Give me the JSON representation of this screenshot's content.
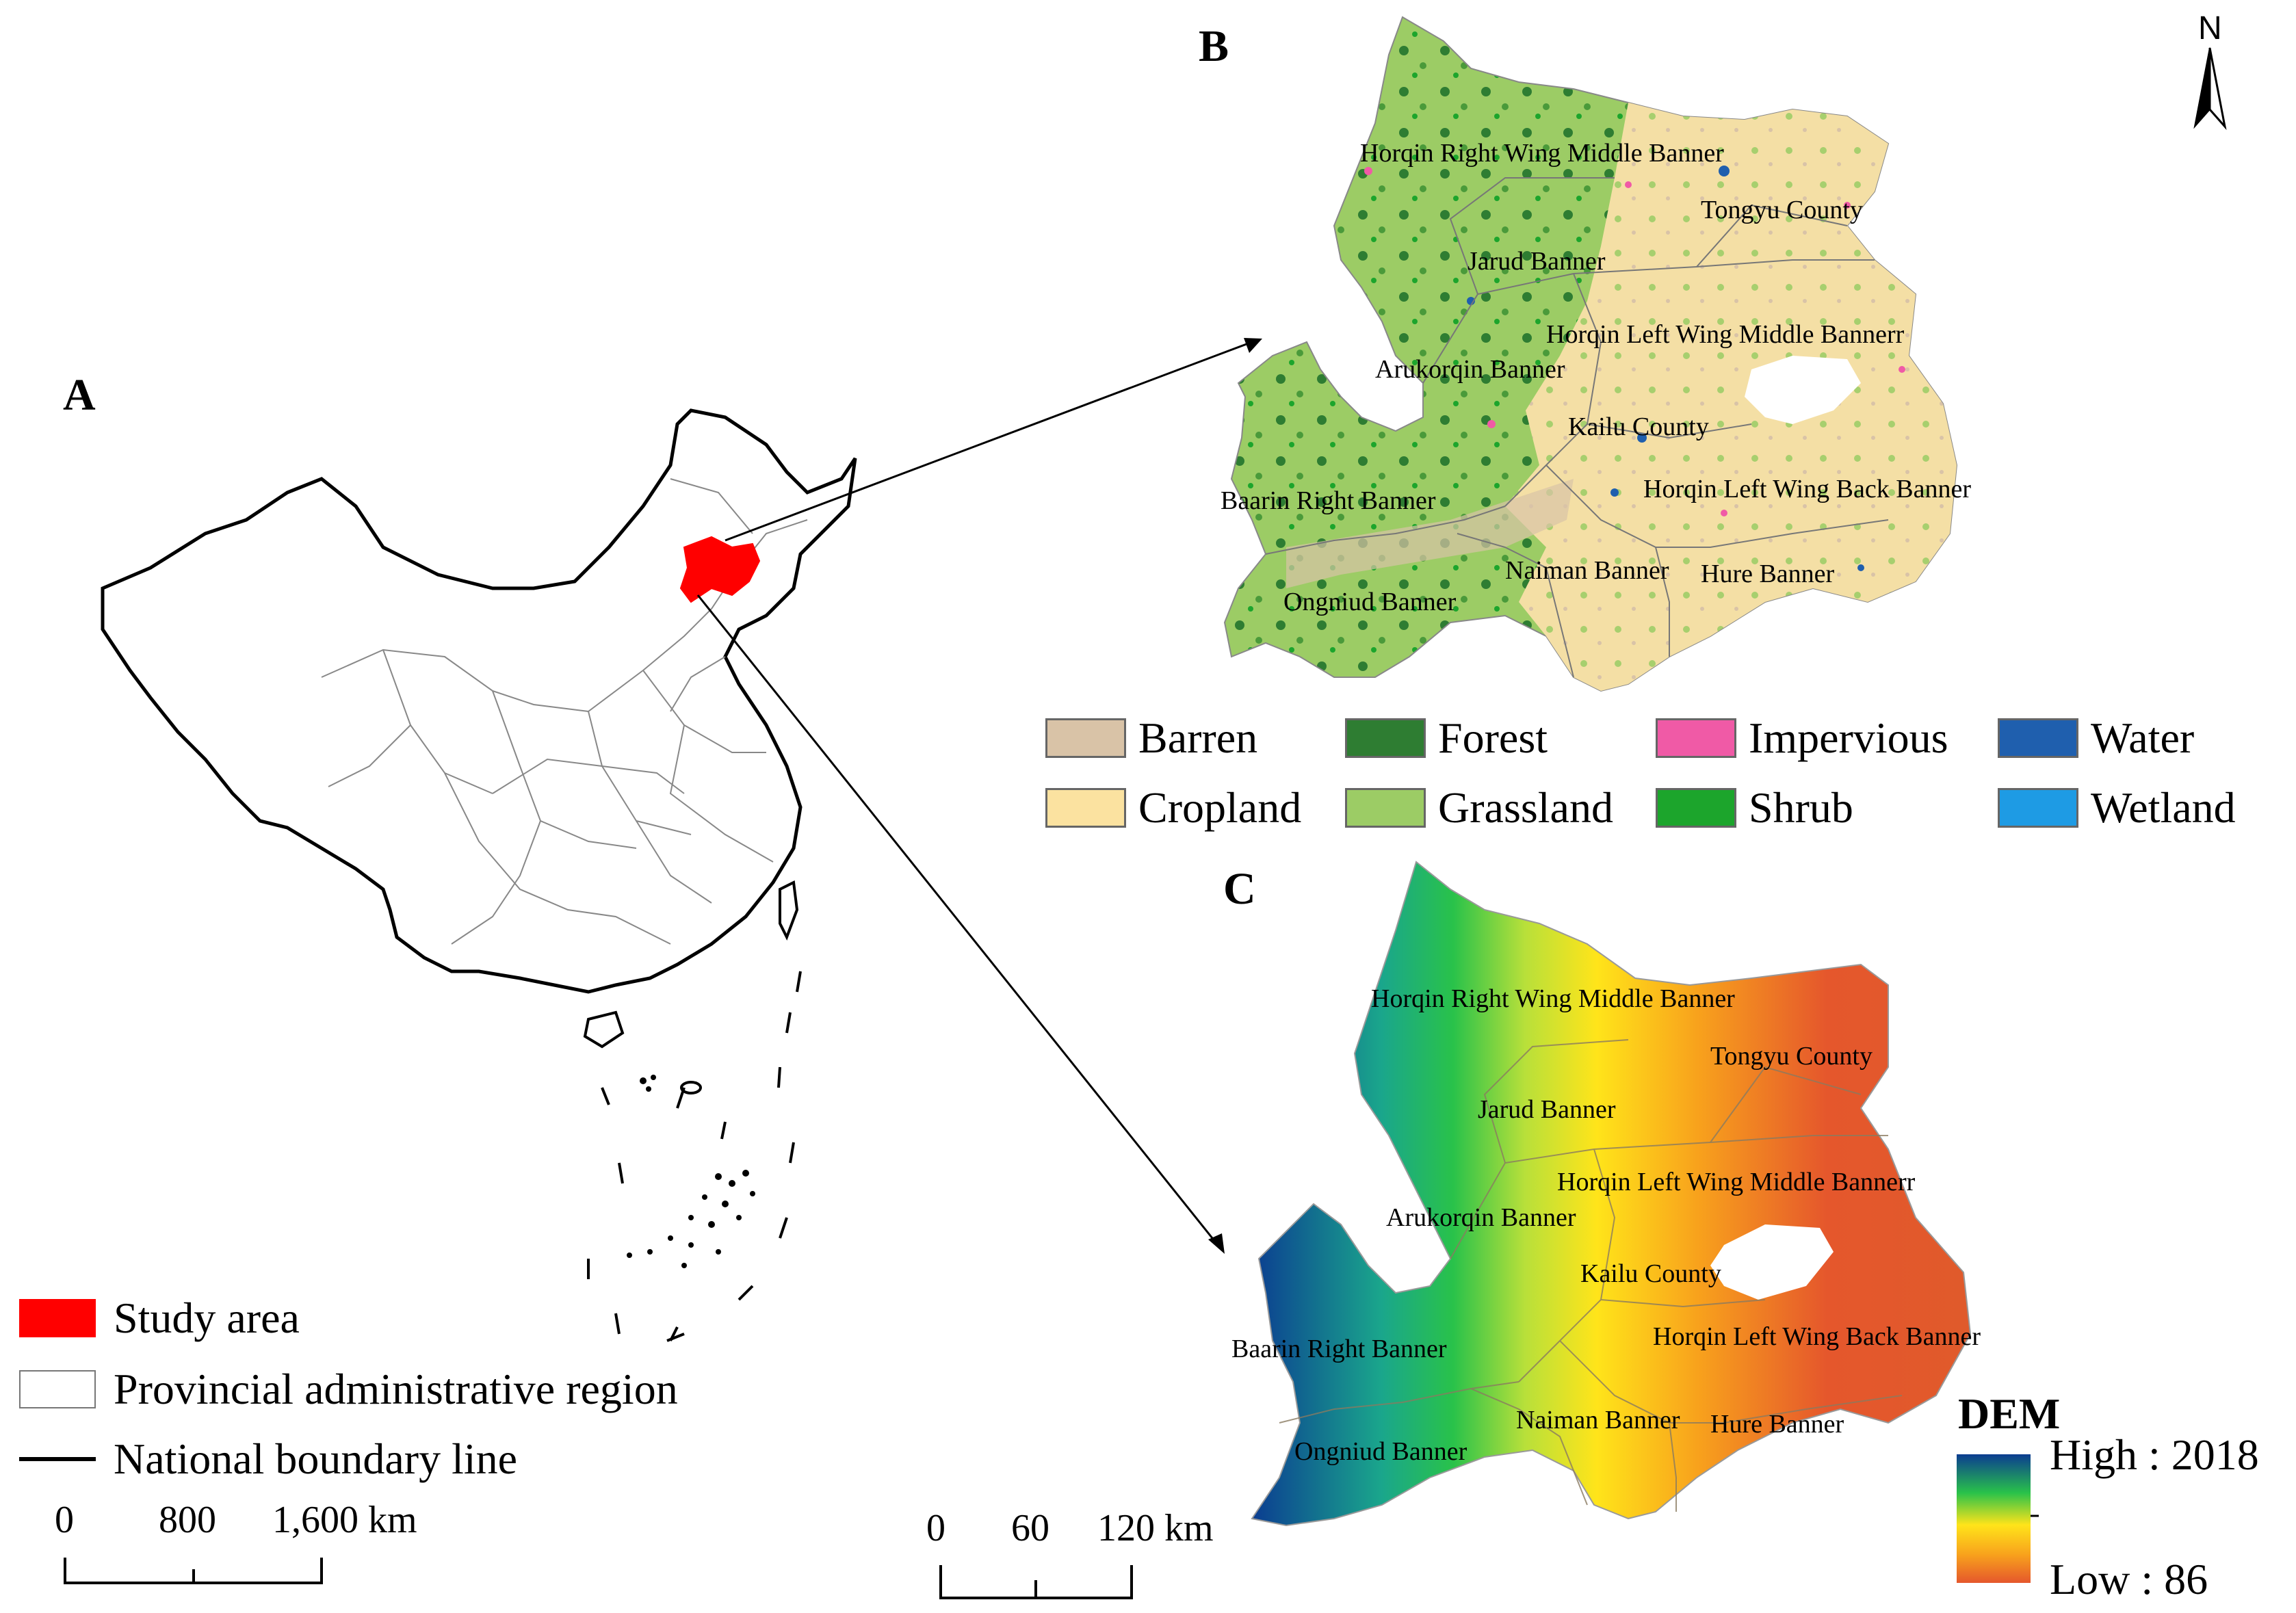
{
  "panels": {
    "a": "A",
    "b": "B",
    "c": "C"
  },
  "north_label": "N",
  "map_a_legend": {
    "study_area": "Study area",
    "province": "Provincial administrative region",
    "national": "National boundary line"
  },
  "map_a_scale": {
    "t0": "0",
    "t1": "800",
    "t2": "1,600 km"
  },
  "land_cover_legend": [
    {
      "label": "Barren",
      "color": "#d9c3a7"
    },
    {
      "label": "Forest",
      "color": "#2e7d32"
    },
    {
      "label": "Impervious",
      "color": "#f05aa6"
    },
    {
      "label": "Water",
      "color": "#1f5fae"
    },
    {
      "label": "Cropland",
      "color": "#fbe2a0"
    },
    {
      "label": "Grassland",
      "color": "#9ccc65"
    },
    {
      "label": "Shrub",
      "color": "#1ca52c"
    },
    {
      "label": "Wetland",
      "color": "#1e9be4"
    }
  ],
  "counties": {
    "horqin_right": "Horqin Right Wing Middle Banner",
    "tongyu": "Tongyu County",
    "jarud": "Jarud  Banner",
    "horqin_left_mid": "Horqin Left Wing Middle Bannerr",
    "arukorqin": "Arukorqin Banner",
    "kailu": "Kailu County",
    "horqin_left_back": "Horqin Left Wing Back Banner",
    "baarin": "Baarin Right Banner",
    "naiman": "Naiman Banner",
    "hure": "Hure Banner",
    "ongniud": "Ongniud Banner"
  },
  "dem_legend": {
    "title": "DEM",
    "high": "High : 2018",
    "low": "Low : 86",
    "gradient": [
      "#0b3d91",
      "#1aa68c",
      "#29c24a",
      "#b8e03a",
      "#ffe41a",
      "#f8a21c",
      "#e5572c"
    ]
  },
  "map_b_scale": {
    "t0": "0",
    "t1": "60",
    "t2": "120 km"
  },
  "colors": {
    "study_area": "#ff0000",
    "forest_dark": "#2e7d32",
    "grass": "#9ccc65",
    "crop": "#f4dfa5"
  }
}
